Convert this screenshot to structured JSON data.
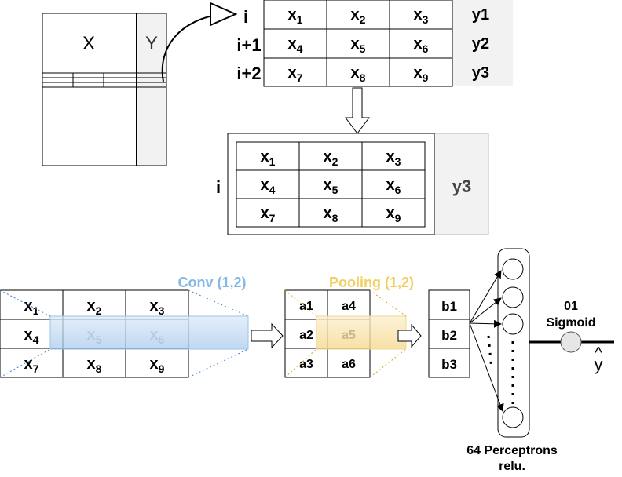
{
  "top_block": {
    "x_label": "X",
    "y_label": "Y"
  },
  "window": {
    "row_labels": [
      "i",
      "i+1",
      "i+2"
    ],
    "cells": [
      [
        "x1",
        "x2",
        "x3"
      ],
      [
        "x4",
        "x5",
        "x6"
      ],
      [
        "x7",
        "x8",
        "x9"
      ]
    ],
    "targets": [
      "y1",
      "y2",
      "y3"
    ]
  },
  "sample": {
    "row_label": "i",
    "cells": [
      [
        "x1",
        "x2",
        "x3"
      ],
      [
        "x4",
        "x5",
        "x6"
      ],
      [
        "x7",
        "x8",
        "x9"
      ]
    ],
    "target": "y3"
  },
  "conv": {
    "label": "Conv (1,2)",
    "cells": [
      [
        "x1",
        "x2",
        "x3"
      ],
      [
        "x4",
        "x5",
        "x6"
      ],
      [
        "x7",
        "x8",
        "x9"
      ]
    ],
    "color": "#86b8e6"
  },
  "pooling": {
    "label": "Pooling (1,2)",
    "cells": [
      [
        "a1",
        "a4"
      ],
      [
        "a2",
        "a5"
      ],
      [
        "a3",
        "a6"
      ]
    ],
    "color": "#f0d060"
  },
  "flatten": {
    "cells": [
      "b1",
      "b2",
      "b3"
    ]
  },
  "dense": {
    "label_line1": "64 Perceptrons",
    "label_line2": "relu."
  },
  "output": {
    "units": "01",
    "activation": "Sigmoid",
    "symbol": "y",
    "hat": "^"
  }
}
